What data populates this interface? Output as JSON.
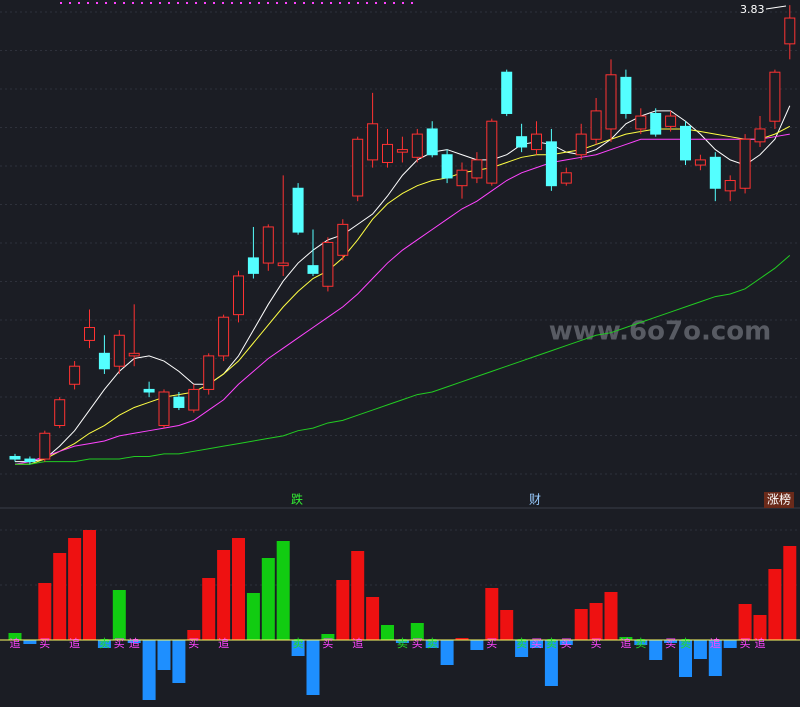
{
  "chart_data": {
    "type": "candlestick",
    "max_label": "3.83",
    "watermark": "www.6o7o.com",
    "markers": [
      "跌",
      "财",
      "涨榜"
    ],
    "ylim": [
      1.95,
      3.85
    ],
    "up_color": "#ff3232",
    "down_color": "#54ffff",
    "candles": [
      [
        2.08,
        2.09,
        2.06,
        2.07
      ],
      [
        2.07,
        2.08,
        2.05,
        2.06
      ],
      [
        2.07,
        2.18,
        2.06,
        2.17
      ],
      [
        2.2,
        2.31,
        2.19,
        2.3
      ],
      [
        2.36,
        2.45,
        2.34,
        2.43
      ],
      [
        2.53,
        2.65,
        2.5,
        2.58
      ],
      [
        2.48,
        2.55,
        2.4,
        2.42
      ],
      [
        2.43,
        2.57,
        2.4,
        2.55
      ],
      [
        2.47,
        2.67,
        2.43,
        2.48
      ],
      [
        2.34,
        2.37,
        2.31,
        2.33
      ],
      [
        2.2,
        2.34,
        2.19,
        2.33
      ],
      [
        2.31,
        2.33,
        2.26,
        2.27
      ],
      [
        2.26,
        2.36,
        2.25,
        2.34
      ],
      [
        2.34,
        2.48,
        2.32,
        2.47
      ],
      [
        2.47,
        2.63,
        2.45,
        2.62
      ],
      [
        2.63,
        2.8,
        2.6,
        2.78
      ],
      [
        2.85,
        2.97,
        2.77,
        2.79
      ],
      [
        2.83,
        2.98,
        2.8,
        2.97
      ],
      [
        2.82,
        3.17,
        2.78,
        2.83
      ],
      [
        3.12,
        3.14,
        2.94,
        2.95
      ],
      [
        2.82,
        2.96,
        2.78,
        2.79
      ],
      [
        2.74,
        2.93,
        2.72,
        2.91
      ],
      [
        2.86,
        3.0,
        2.84,
        2.98
      ],
      [
        3.09,
        3.32,
        3.07,
        3.31
      ],
      [
        3.23,
        3.49,
        3.2,
        3.37
      ],
      [
        3.22,
        3.35,
        3.2,
        3.29
      ],
      [
        3.26,
        3.32,
        3.22,
        3.27
      ],
      [
        3.24,
        3.35,
        3.22,
        3.33
      ],
      [
        3.35,
        3.38,
        3.24,
        3.25
      ],
      [
        3.25,
        3.27,
        3.14,
        3.16
      ],
      [
        3.13,
        3.22,
        3.08,
        3.19
      ],
      [
        3.16,
        3.26,
        3.14,
        3.23
      ],
      [
        3.14,
        3.39,
        3.13,
        3.38
      ],
      [
        3.57,
        3.58,
        3.4,
        3.41
      ],
      [
        3.32,
        3.37,
        3.26,
        3.28
      ],
      [
        3.27,
        3.38,
        3.25,
        3.33
      ],
      [
        3.3,
        3.35,
        3.11,
        3.13
      ],
      [
        3.14,
        3.2,
        3.13,
        3.18
      ],
      [
        3.25,
        3.37,
        3.23,
        3.33
      ],
      [
        3.31,
        3.47,
        3.29,
        3.42
      ],
      [
        3.35,
        3.62,
        3.3,
        3.56
      ],
      [
        3.55,
        3.58,
        3.39,
        3.41
      ],
      [
        3.35,
        3.43,
        3.33,
        3.4
      ],
      [
        3.41,
        3.43,
        3.32,
        3.33
      ],
      [
        3.36,
        3.42,
        3.34,
        3.4
      ],
      [
        3.36,
        3.38,
        3.21,
        3.23
      ],
      [
        3.21,
        3.25,
        3.19,
        3.23
      ],
      [
        3.24,
        3.26,
        3.07,
        3.12
      ],
      [
        3.11,
        3.17,
        3.07,
        3.15
      ],
      [
        3.12,
        3.33,
        3.1,
        3.31
      ],
      [
        3.3,
        3.4,
        3.28,
        3.35
      ],
      [
        3.38,
        3.58,
        3.35,
        3.57
      ],
      [
        3.68,
        3.83,
        3.62,
        3.78
      ]
    ],
    "series": [
      {
        "color": "#ffffff",
        "values": [
          2.06,
          2.06,
          2.07,
          2.12,
          2.18,
          2.26,
          2.34,
          2.41,
          2.46,
          2.47,
          2.45,
          2.41,
          2.36,
          2.36,
          2.4,
          2.47,
          2.57,
          2.67,
          2.76,
          2.83,
          2.88,
          2.92,
          2.94,
          2.98,
          3.02,
          3.09,
          3.17,
          3.23,
          3.26,
          3.27,
          3.25,
          3.23,
          3.23,
          3.25,
          3.29,
          3.3,
          3.29,
          3.26,
          3.25,
          3.27,
          3.31,
          3.37,
          3.4,
          3.42,
          3.42,
          3.38,
          3.33,
          3.27,
          3.23,
          3.21,
          3.25,
          3.31,
          3.44
        ]
      },
      {
        "color": "#ffff44",
        "values": [
          2.05,
          2.05,
          2.07,
          2.1,
          2.13,
          2.17,
          2.2,
          2.24,
          2.27,
          2.29,
          2.31,
          2.32,
          2.33,
          2.36,
          2.4,
          2.45,
          2.52,
          2.59,
          2.66,
          2.72,
          2.77,
          2.8,
          2.85,
          2.92,
          3.0,
          3.06,
          3.1,
          3.13,
          3.15,
          3.16,
          3.18,
          3.19,
          3.2,
          3.22,
          3.24,
          3.25,
          3.25,
          3.26,
          3.27,
          3.29,
          3.31,
          3.33,
          3.34,
          3.35,
          3.35,
          3.35,
          3.34,
          3.33,
          3.32,
          3.31,
          3.31,
          3.33,
          3.36
        ]
      },
      {
        "color": "#ff44ff",
        "values": [
          2.05,
          2.06,
          2.08,
          2.1,
          2.12,
          2.13,
          2.14,
          2.16,
          2.17,
          2.18,
          2.19,
          2.2,
          2.22,
          2.26,
          2.3,
          2.36,
          2.41,
          2.46,
          2.5,
          2.54,
          2.58,
          2.62,
          2.66,
          2.71,
          2.77,
          2.83,
          2.88,
          2.92,
          2.96,
          3.0,
          3.04,
          3.07,
          3.11,
          3.15,
          3.18,
          3.2,
          3.22,
          3.23,
          3.24,
          3.25,
          3.27,
          3.29,
          3.31,
          3.31,
          3.31,
          3.31,
          3.31,
          3.31,
          3.31,
          3.31,
          3.31,
          3.32,
          3.33
        ]
      },
      {
        "color": "#22cc22",
        "values": [
          2.05,
          2.05,
          2.06,
          2.06,
          2.06,
          2.07,
          2.07,
          2.07,
          2.08,
          2.08,
          2.09,
          2.09,
          2.1,
          2.11,
          2.12,
          2.13,
          2.14,
          2.15,
          2.16,
          2.18,
          2.19,
          2.21,
          2.22,
          2.24,
          2.26,
          2.28,
          2.3,
          2.32,
          2.33,
          2.35,
          2.37,
          2.39,
          2.41,
          2.43,
          2.45,
          2.47,
          2.49,
          2.51,
          2.53,
          2.55,
          2.56,
          2.58,
          2.6,
          2.62,
          2.64,
          2.66,
          2.68,
          2.7,
          2.71,
          2.73,
          2.77,
          2.81,
          2.86
        ]
      }
    ],
    "histogram": {
      "ylim": [
        -65,
        125
      ],
      "values": [
        7,
        -4,
        57,
        87,
        102,
        110,
        -8,
        50,
        -3,
        -60,
        -30,
        -43,
        10,
        62,
        90,
        102,
        47,
        82,
        99,
        -16,
        -55,
        6,
        60,
        89,
        43,
        15,
        -3,
        17,
        -8,
        -25,
        2,
        -10,
        52,
        30,
        -17,
        -8,
        -46,
        -5,
        31,
        37,
        48,
        3,
        -5,
        -20,
        -3,
        -37,
        -19,
        -36,
        -8,
        36,
        25,
        71,
        94
      ],
      "colors": [
        "#11cc11",
        "#1e8fff",
        "#ee1111",
        "#ee1111",
        "#ee1111",
        "#ee1111",
        "#1e8fff",
        "#11cc11",
        "#1e8fff",
        "#1e8fff",
        "#1e8fff",
        "#1e8fff",
        "#ee1111",
        "#ee1111",
        "#ee1111",
        "#ee1111",
        "#11cc11",
        "#11cc11",
        "#11cc11",
        "#1e8fff",
        "#1e8fff",
        "#11cc11",
        "#ee1111",
        "#ee1111",
        "#ee1111",
        "#11cc11",
        "#1e8fff",
        "#11cc11",
        "#1e8fff",
        "#1e8fff",
        "#ee1111",
        "#1e8fff",
        "#ee1111",
        "#ee1111",
        "#1e8fff",
        "#1e8fff",
        "#1e8fff",
        "#1e8fff",
        "#ee1111",
        "#ee1111",
        "#ee1111",
        "#11cc11",
        "#1e8fff",
        "#1e8fff",
        "#1e8fff",
        "#1e8fff",
        "#1e8fff",
        "#1e8fff",
        "#1e8fff",
        "#ee1111",
        "#ee1111",
        "#ee1111",
        "#ee1111"
      ],
      "signals": [
        "追",
        null,
        "买",
        null,
        "追",
        null,
        "卖",
        "买",
        "追",
        null,
        null,
        null,
        "买",
        null,
        "追",
        null,
        null,
        null,
        null,
        "卖",
        null,
        "买",
        null,
        "追",
        null,
        null,
        "卖",
        "买",
        "卖",
        null,
        null,
        null,
        "买",
        null,
        "卖",
        "买",
        "卖",
        "买",
        null,
        "买",
        null,
        "追",
        "卖",
        null,
        "买",
        "卖",
        null,
        "追",
        null,
        "买",
        "追",
        null,
        null
      ],
      "signal_colors": {
        "买": "#ff44ff",
        "追": "#ff44ff",
        "卖": "#22dd22"
      }
    }
  }
}
